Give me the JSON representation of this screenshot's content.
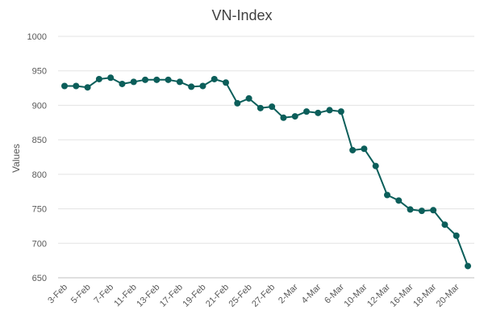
{
  "chart_data": {
    "type": "line",
    "title": "VN-Index",
    "xlabel": "",
    "ylabel": "Values",
    "ylim": [
      650,
      1000
    ],
    "y_ticks": [
      650,
      700,
      750,
      800,
      850,
      900,
      950,
      1000
    ],
    "grid": true,
    "legend": "none",
    "line_color": "#0b5e5a",
    "x": [
      "3-Feb",
      "4-Feb",
      "5-Feb",
      "6-Feb",
      "7-Feb",
      "10-Feb",
      "11-Feb",
      "12-Feb",
      "13-Feb",
      "14-Feb",
      "17-Feb",
      "18-Feb",
      "19-Feb",
      "20-Feb",
      "21-Feb",
      "24-Feb",
      "25-Feb",
      "26-Feb",
      "27-Feb",
      "28-Feb",
      "2-Mar",
      "3-Mar",
      "4-Mar",
      "5-Mar",
      "6-Mar",
      "9-Mar",
      "10-Mar",
      "11-Mar",
      "12-Mar",
      "13-Mar",
      "16-Mar",
      "17-Mar",
      "18-Mar",
      "19-Mar",
      "20-Mar",
      "23-Mar"
    ],
    "x_tick_labels": [
      "3-Feb",
      "5-Feb",
      "7-Feb",
      "11-Feb",
      "13-Feb",
      "17-Feb",
      "19-Feb",
      "21-Feb",
      "25-Feb",
      "27-Feb",
      "2-Mar",
      "4-Mar",
      "6-Mar",
      "10-Mar",
      "12-Mar",
      "16-Mar",
      "18-Mar",
      "20-Mar"
    ],
    "series": [
      {
        "values": [
          928,
          928,
          926,
          938,
          940,
          931,
          934,
          937,
          937,
          937,
          934,
          927,
          928,
          938,
          933,
          903,
          910,
          896,
          898,
          882,
          884,
          891,
          889,
          893,
          891,
          835,
          837,
          812,
          770,
          762,
          749,
          747,
          748,
          727,
          711,
          667
        ]
      }
    ]
  }
}
